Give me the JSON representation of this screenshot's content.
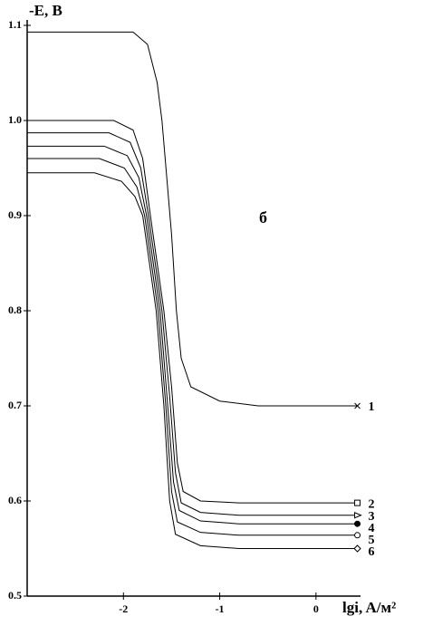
{
  "chart_data": {
    "type": "line",
    "ylabel": "-E, B",
    "xlabel": "lgi, A/м²",
    "annotation": "б",
    "xlim": [
      -3,
      0.5
    ],
    "xticks": [
      -2,
      -1,
      0
    ],
    "ylim": [
      0.5,
      1.1
    ],
    "yticks": [
      0.5,
      0.6,
      0.7,
      0.8,
      0.9,
      {
        "value": 1,
        "label": "1.0"
      },
      1.1
    ],
    "series": [
      {
        "name": "1",
        "color": "#000000",
        "marker": "x",
        "x": [
          -3,
          -1.9,
          -1.75,
          -1.65,
          -1.6,
          -1.55,
          -1.5,
          -1.45,
          -1.4,
          -1.3,
          -1.0,
          -0.6,
          0.43
        ],
        "values": [
          1.093,
          1.093,
          1.08,
          1.04,
          1.0,
          0.94,
          0.88,
          0.8,
          0.75,
          0.72,
          0.705,
          0.7,
          0.7
        ]
      },
      {
        "name": "2",
        "color": "#000000",
        "marker": "square",
        "x": [
          -3,
          -2.1,
          -1.9,
          -1.8,
          -1.72,
          -1.65,
          -1.58,
          -1.5,
          -1.44,
          -1.38,
          -1.2,
          -0.8,
          0.43
        ],
        "values": [
          1.0,
          1.0,
          0.99,
          0.96,
          0.9,
          0.85,
          0.8,
          0.72,
          0.64,
          0.61,
          0.6,
          0.598,
          0.598
        ]
      },
      {
        "name": "3",
        "color": "#000000",
        "marker": "triangle",
        "x": [
          -3,
          -2.15,
          -1.93,
          -1.82,
          -1.74,
          -1.67,
          -1.6,
          -1.52,
          -1.46,
          -1.4,
          -1.2,
          -0.8,
          0.43
        ],
        "values": [
          0.987,
          0.987,
          0.977,
          0.95,
          0.9,
          0.85,
          0.8,
          0.71,
          0.63,
          0.598,
          0.588,
          0.585,
          0.585
        ]
      },
      {
        "name": "4",
        "color": "#000000",
        "marker": "dot",
        "x": [
          -3,
          -2.2,
          -1.96,
          -1.84,
          -1.76,
          -1.69,
          -1.62,
          -1.54,
          -1.48,
          -1.42,
          -1.2,
          -0.8,
          0.43
        ],
        "values": [
          0.973,
          0.973,
          0.963,
          0.94,
          0.9,
          0.85,
          0.8,
          0.7,
          0.62,
          0.59,
          0.579,
          0.576,
          0.576
        ]
      },
      {
        "name": "5",
        "color": "#000000",
        "marker": "circle",
        "x": [
          -3,
          -2.25,
          -1.99,
          -1.86,
          -1.78,
          -1.71,
          -1.64,
          -1.56,
          -1.5,
          -1.44,
          -1.2,
          -0.8,
          0.43
        ],
        "values": [
          0.96,
          0.96,
          0.95,
          0.93,
          0.9,
          0.85,
          0.8,
          0.7,
          0.61,
          0.578,
          0.567,
          0.564,
          0.564
        ]
      },
      {
        "name": "6",
        "color": "#000000",
        "marker": "diamond",
        "x": [
          -3,
          -2.3,
          -2.02,
          -1.88,
          -1.8,
          -1.73,
          -1.66,
          -1.58,
          -1.52,
          -1.46,
          -1.2,
          -0.8,
          0.43
        ],
        "values": [
          0.945,
          0.945,
          0.936,
          0.92,
          0.9,
          0.85,
          0.8,
          0.7,
          0.6,
          0.565,
          0.553,
          0.55,
          0.55
        ]
      }
    ]
  }
}
